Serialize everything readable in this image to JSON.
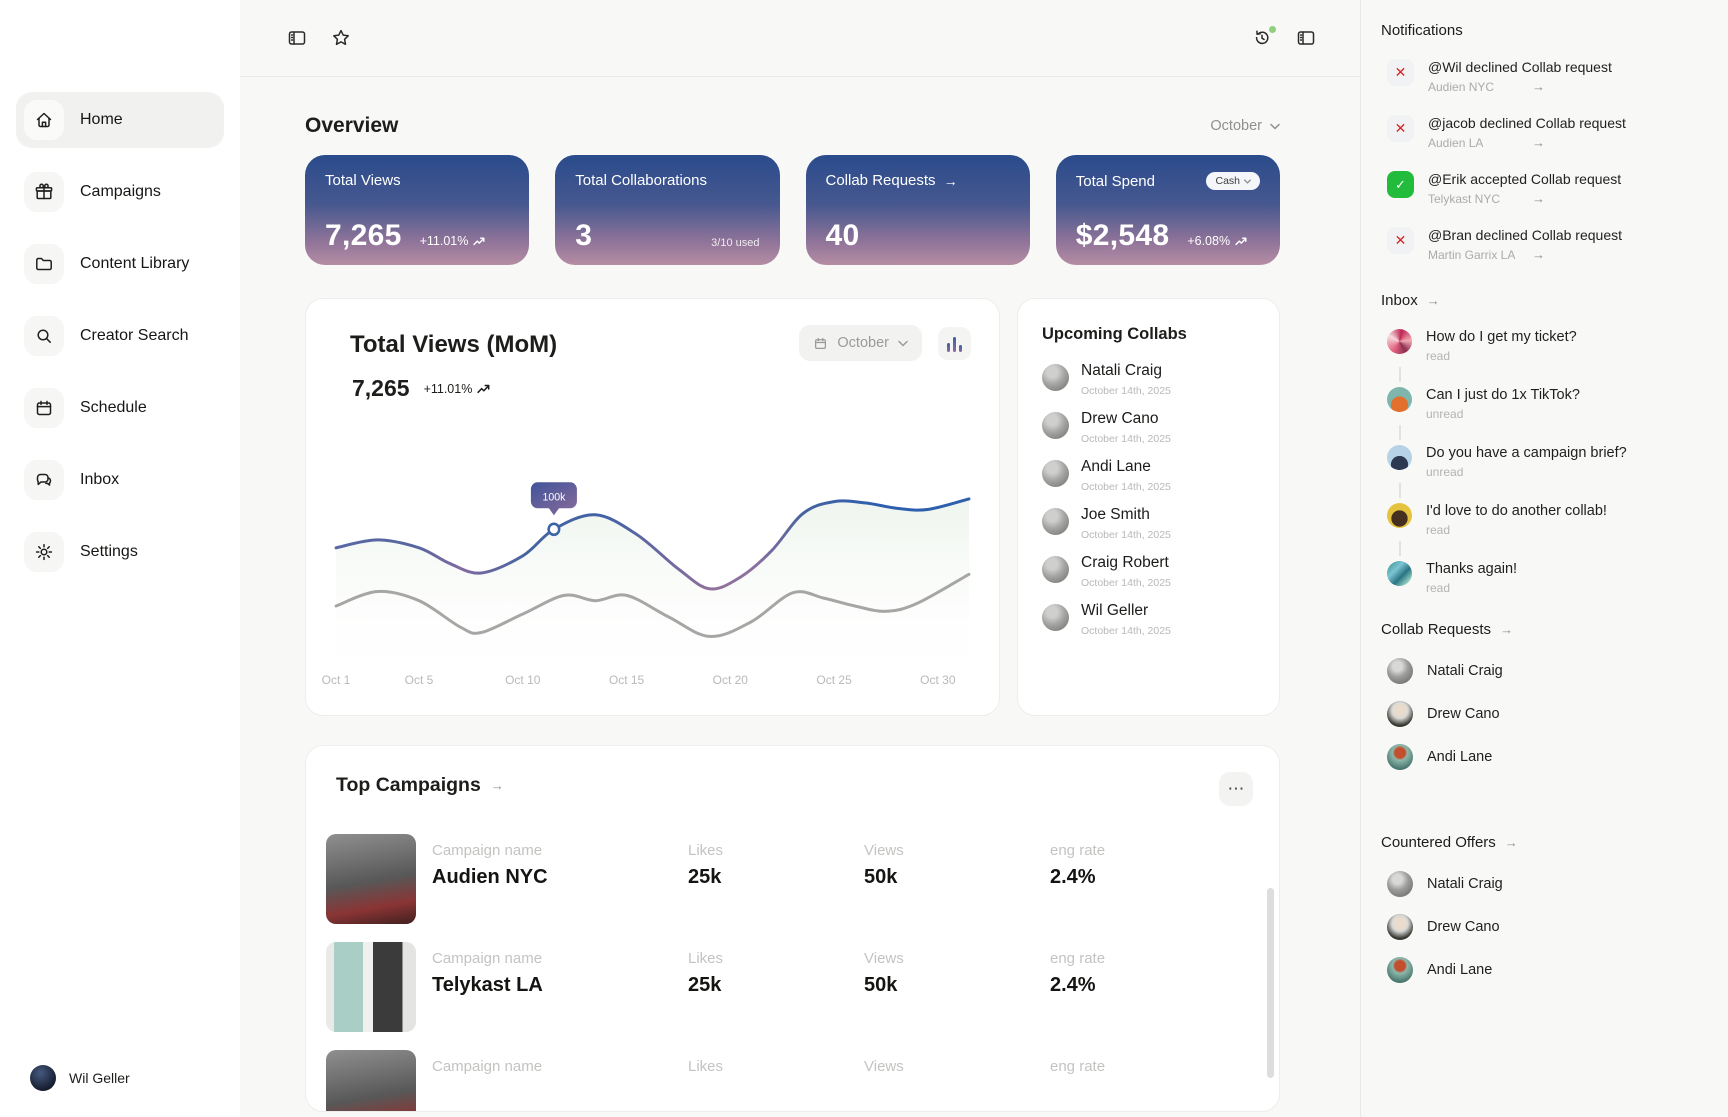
{
  "colors": {
    "stat_card_top": "#2a4b8c",
    "stat_card_bottom": "#b68da3",
    "line_blue": "#3c63a8",
    "line_gray": "#a6a6a4",
    "declined_red": "#d82626",
    "accepted_green": "#22bb3b"
  },
  "topbar": {
    "left_icons": [
      "sidebar-toggle-icon",
      "star-icon"
    ],
    "right_icons": [
      "history-icon",
      "panel-right-icon"
    ]
  },
  "sidebar": {
    "items": [
      {
        "label": "Home",
        "icon": "home-icon",
        "active": true
      },
      {
        "label": "Campaigns",
        "icon": "gift-icon"
      },
      {
        "label": "Content Library",
        "icon": "folder-icon"
      },
      {
        "label": "Creator Search",
        "icon": "search-icon"
      },
      {
        "label": "Schedule",
        "icon": "calendar-icon"
      },
      {
        "label": "Inbox",
        "icon": "chat-icon"
      },
      {
        "label": "Settings",
        "icon": "gear-icon"
      }
    ],
    "user": {
      "name": "Wil Geller"
    }
  },
  "overview": {
    "title": "Overview",
    "month": "October"
  },
  "stats": [
    {
      "label": "Total Views",
      "value": "7,265",
      "delta": "+11.01%"
    },
    {
      "label": "Total Collaborations",
      "value": "3",
      "note": "3/10 used"
    },
    {
      "label": "Collab Requests",
      "value": "40",
      "label_arrow": "→"
    },
    {
      "label": "Total Spend",
      "value": "$2,548",
      "delta": "+6.08%",
      "badge": "Cash"
    }
  ],
  "chart_card": {
    "title": "Total Views (MoM)",
    "value": "7,265",
    "delta": "+11.01%",
    "month": "October"
  },
  "chart_data": {
    "type": "line",
    "title": "Total Views (MoM)",
    "current_total": 7265,
    "delta_pct": "+11.01%",
    "unit": "thousand views",
    "grid": false,
    "legend": "none",
    "xlim": [
      1,
      31.5
    ],
    "ylim": [
      40,
      130
    ],
    "x_ticks": [
      {
        "label": "Oct 1",
        "day": 1
      },
      {
        "label": "Oct 5",
        "day": 5
      },
      {
        "label": "Oct 10",
        "day": 10
      },
      {
        "label": "Oct 15",
        "day": 15
      },
      {
        "label": "Oct 20",
        "day": 20
      },
      {
        "label": "Oct 25",
        "day": 25
      },
      {
        "label": "Oct 30",
        "day": 30
      }
    ],
    "series": [
      {
        "name": "current-month",
        "color": "blue-purple-gradient",
        "points": [
          [
            1,
            93
          ],
          [
            3,
            96
          ],
          [
            5,
            93
          ],
          [
            6.5,
            87
          ],
          [
            8,
            83.5
          ],
          [
            10,
            90
          ],
          [
            11.5,
            100
          ],
          [
            13.5,
            105.5
          ],
          [
            15.5,
            98
          ],
          [
            17.5,
            85
          ],
          [
            19,
            77.5
          ],
          [
            20.5,
            82
          ],
          [
            22,
            92
          ],
          [
            23.5,
            106
          ],
          [
            25,
            110.5
          ],
          [
            26.5,
            110
          ],
          [
            28,
            108
          ],
          [
            29.5,
            107.5
          ],
          [
            31.5,
            111.5
          ]
        ]
      },
      {
        "name": "previous-month",
        "color": "#a6a6a4",
        "points": [
          [
            1,
            71
          ],
          [
            3,
            76.5
          ],
          [
            5,
            73
          ],
          [
            7,
            63
          ],
          [
            8,
            61
          ],
          [
            10,
            68
          ],
          [
            12,
            75
          ],
          [
            13.5,
            73
          ],
          [
            15,
            75
          ],
          [
            17,
            67
          ],
          [
            19,
            59.5
          ],
          [
            21,
            65
          ],
          [
            23,
            76
          ],
          [
            24.5,
            74
          ],
          [
            26,
            71
          ],
          [
            27.5,
            69
          ],
          [
            29,
            72
          ],
          [
            31.5,
            83
          ]
        ]
      }
    ],
    "marker": {
      "day": 11.5,
      "value": 100,
      "label": "100k"
    }
  },
  "upcoming": {
    "title": "Upcoming Collabs",
    "items": [
      {
        "name": "Natali Craig",
        "date": "October 14th, 2025"
      },
      {
        "name": "Drew Cano",
        "date": "October 14th, 2025"
      },
      {
        "name": "Andi Lane",
        "date": "October 14th, 2025"
      },
      {
        "name": "Joe Smith",
        "date": "October 14th, 2025"
      },
      {
        "name": "Craig Robert",
        "date": "October 14th, 2025"
      },
      {
        "name": "Wil Geller",
        "date": "October 14th, 2025"
      }
    ]
  },
  "top_campaigns": {
    "title": "Top Campaigns",
    "title_arrow": "→",
    "more_label": "⋯",
    "headers": {
      "name": "Campaign name",
      "likes": "Likes",
      "views": "Views",
      "eng": "eng rate"
    },
    "rows": [
      {
        "photo": "photo-a",
        "name": "Audien NYC",
        "likes": "25k",
        "views": "50k",
        "eng": "2.4%"
      },
      {
        "photo": "photo-b",
        "name": "Telykast LA",
        "likes": "25k",
        "views": "50k",
        "eng": "2.4%"
      },
      {
        "photo": "photo-a",
        "name": "",
        "likes": "",
        "views": "",
        "eng": ""
      }
    ]
  },
  "notifications": {
    "title": "Notifications",
    "items": [
      {
        "icon": "declined",
        "title": "@Wil declined Collab request",
        "subtitle": "Audien NYC",
        "arrow": "→"
      },
      {
        "icon": "declined",
        "title": "@jacob declined Collab request",
        "subtitle": "Audien LA",
        "arrow": "→"
      },
      {
        "icon": "accepted",
        "title": "@Erik accepted Collab request",
        "subtitle": "Telykast NYC",
        "arrow": "→"
      },
      {
        "icon": "declined",
        "title": "@Bran declined Collab request",
        "subtitle": "Martin Garrix LA",
        "arrow": "→"
      }
    ]
  },
  "inbox": {
    "title": "Inbox",
    "title_arrow": "→",
    "items": [
      {
        "avatar": "av1",
        "text": "How do I get my ticket?",
        "status": "read"
      },
      {
        "avatar": "av2",
        "text": "Can I just do 1x TikTok?",
        "status": "unread"
      },
      {
        "avatar": "av3",
        "text": "Do you have a campaign brief?",
        "status": "unread"
      },
      {
        "avatar": "av4",
        "text": "I'd love to do another collab!",
        "status": "read"
      },
      {
        "avatar": "av5",
        "text": "Thanks again!",
        "status": "read"
      }
    ]
  },
  "collab_requests": {
    "title": "Collab Requests",
    "title_arrow": "→",
    "items": [
      {
        "avatar": "av-natali",
        "name": "Natali Craig"
      },
      {
        "avatar": "av-drew",
        "name": "Drew Cano"
      },
      {
        "avatar": "av-andi",
        "name": "Andi Lane"
      }
    ]
  },
  "countered_offers": {
    "title": "Countered Offers",
    "title_arrow": "→",
    "items": [
      {
        "avatar": "av-natali",
        "name": "Natali Craig"
      },
      {
        "avatar": "av-drew",
        "name": "Drew Cano"
      },
      {
        "avatar": "av-andi",
        "name": "Andi Lane"
      }
    ]
  }
}
